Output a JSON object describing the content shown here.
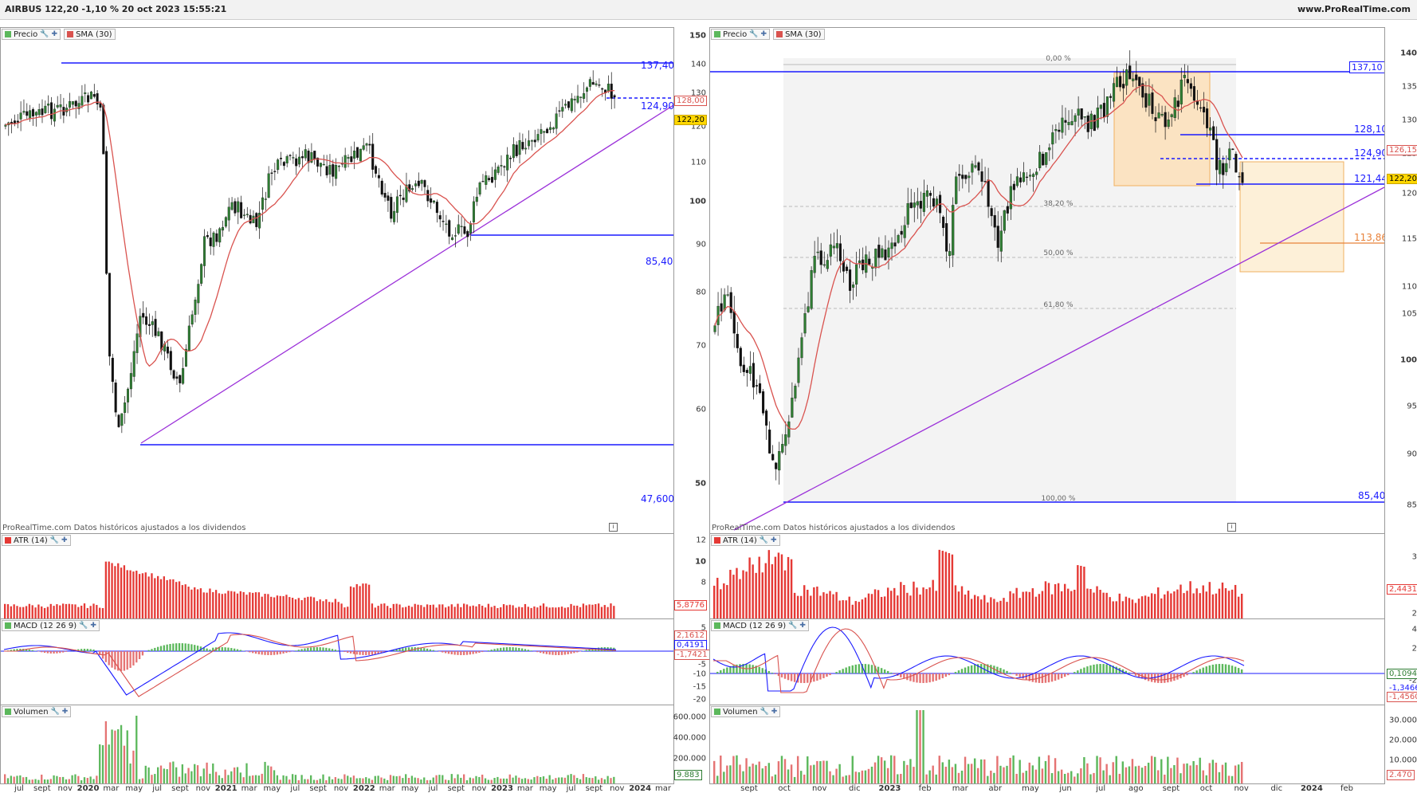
{
  "header": {
    "title": "AIRBUS 122,20 -1,10 % 20 oct 2023 15:55:21",
    "site": "www.ProRealTime.com"
  },
  "colors": {
    "candle_up": "#2e7d32",
    "candle_down": "#111111",
    "sma": "#d9534f",
    "level": "#1a1aff",
    "trend": "#9b30d9",
    "atr": "#e53935",
    "vol_up": "#5cb85c",
    "vol_down": "#e57373",
    "fib_box": "#fbe3c2"
  },
  "icons": {
    "wrench": "wrench-icon",
    "plus": "plus-icon",
    "info": "info-icon"
  },
  "left": {
    "price_labels": {
      "precio": "Precio",
      "sma": "SMA (30)"
    },
    "footer": "ProRealTime.com  Datos históricos ajustados a los dividendos",
    "yaxis": [
      "150",
      "140",
      "130",
      "120",
      "110",
      "100",
      "90",
      "80",
      "70",
      "60",
      "50"
    ],
    "levels": {
      "top": "137,40",
      "mid": "124,90",
      "support": "85,40",
      "bottom": "47,600"
    },
    "tag_sma": "128,00",
    "tag_price": "122,20",
    "atr": {
      "label": "ATR (14)",
      "yaxis": [
        "12",
        "10",
        "8"
      ],
      "value": "5,8776"
    },
    "macd": {
      "label": "MACD (12 26 9)",
      "yaxis": [
        "5",
        "-5",
        "-10",
        "-15",
        "-20"
      ],
      "v1": "2,1612",
      "v2": "0,4191",
      "v3": "-1,7421"
    },
    "volume": {
      "label": "Volumen",
      "yaxis": [
        "600.000",
        "400.000",
        "200.000"
      ],
      "value": "9.883"
    },
    "xaxis": [
      "jul",
      "sept",
      "nov",
      "2020",
      "mar",
      "may",
      "jul",
      "sept",
      "nov",
      "2021",
      "mar",
      "may",
      "jul",
      "sept",
      "nov",
      "2022",
      "mar",
      "may",
      "jul",
      "sept",
      "nov",
      "2023",
      "mar",
      "may",
      "jul",
      "sept",
      "nov",
      "2024",
      "mar"
    ]
  },
  "right": {
    "price_labels": {
      "precio": "Precio",
      "sma": "SMA (30)"
    },
    "footer": "ProRealTime.com  Datos históricos ajustados a los dividendos",
    "yaxis": [
      "140",
      "135",
      "130",
      "125",
      "120",
      "115",
      "110",
      "105",
      "100",
      "95",
      "90",
      "85"
    ],
    "levels": {
      "top": "137,10",
      "l1": "128,10",
      "l2": "124,90",
      "l3": "121,44",
      "target": "113,86",
      "support": "85,40"
    },
    "tag_sma": "126,15",
    "tag_price": "122,20",
    "fib": [
      "0,00 %",
      "38,20 %",
      "50,00 %",
      "61,80 %",
      "100,00 %"
    ],
    "atr": {
      "label": "ATR (14)",
      "yaxis": [
        "3",
        "2"
      ],
      "value": "2,4431"
    },
    "macd": {
      "label": "MACD (12 26 9)",
      "yaxis": [
        "4",
        "2",
        "-2",
        "-4"
      ],
      "v1": "0,1094",
      "v2": "-1,3466",
      "v3": "-1,4560"
    },
    "volume": {
      "label": "Volumen",
      "yaxis": [
        "30.000",
        "20.000",
        "10.000"
      ],
      "value": "2.470"
    },
    "xaxis": [
      "sept",
      "oct",
      "nov",
      "dic",
      "2023",
      "feb",
      "mar",
      "abr",
      "may",
      "jun",
      "jul",
      "ago",
      "sept",
      "oct",
      "nov",
      "dic",
      "2024",
      "feb"
    ]
  }
}
